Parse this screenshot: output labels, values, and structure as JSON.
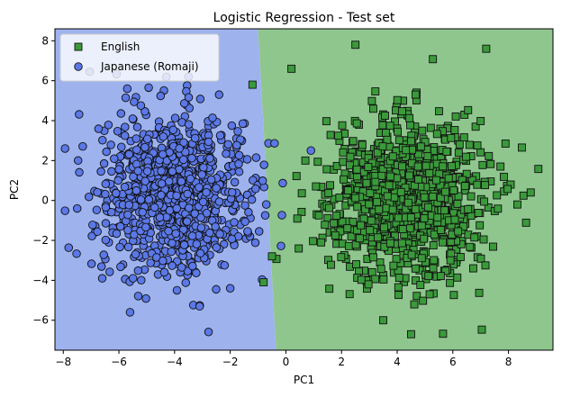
{
  "chart_data": {
    "type": "scatter",
    "title": "Logistic Regression - Test set",
    "xlabel": "PC1",
    "ylabel": "PC2",
    "xlim": [
      -8.3,
      9.6
    ],
    "ylim": [
      -7.5,
      8.6
    ],
    "xticks": [
      -8,
      -6,
      -4,
      -2,
      0,
      2,
      4,
      6,
      8
    ],
    "yticks": [
      -6,
      -4,
      -2,
      0,
      2,
      4,
      6,
      8
    ],
    "grid": false,
    "legend_position": "top-left",
    "decision_boundary": {
      "line": [
        [
          -1.0,
          8.6
        ],
        [
          -0.35,
          -7.5
        ]
      ],
      "left_region_color": "#9eb3ee",
      "right_region_color": "#8fc68e",
      "left_class": "Japanese (Romaji)",
      "right_class": "English"
    },
    "series": [
      {
        "name": "English",
        "marker": "square",
        "color": "#3a9a3a",
        "center": [
          4.3,
          0.2
        ],
        "spread": [
          1.4,
          2.0
        ],
        "approx_count": 1000,
        "notable_points": [
          [
            2.5,
            7.8
          ],
          [
            7.2,
            7.6
          ],
          [
            8.8,
            0.4
          ],
          [
            4.5,
            -6.7
          ],
          [
            3.5,
            -6.0
          ],
          [
            -0.5,
            -2.8
          ],
          [
            -0.8,
            -4.1
          ],
          [
            -1.2,
            5.8
          ],
          [
            0.2,
            6.6
          ],
          [
            0.7,
            2.0
          ]
        ]
      },
      {
        "name": "Japanese (Romaji)",
        "marker": "circle",
        "color": "#5b78e6",
        "center": [
          -4.0,
          0.3
        ],
        "spread": [
          1.3,
          1.9
        ],
        "approx_count": 1000,
        "notable_points": [
          [
            -3.5,
            6.2
          ],
          [
            -5.7,
            5.6
          ],
          [
            -7.5,
            -0.4
          ],
          [
            -6.6,
            -3.9
          ],
          [
            -5.6,
            -5.6
          ],
          [
            -3.1,
            -5.3
          ],
          [
            -2.0,
            -4.4
          ],
          [
            -2.4,
            5.3
          ],
          [
            0.9,
            2.5
          ]
        ]
      }
    ]
  }
}
